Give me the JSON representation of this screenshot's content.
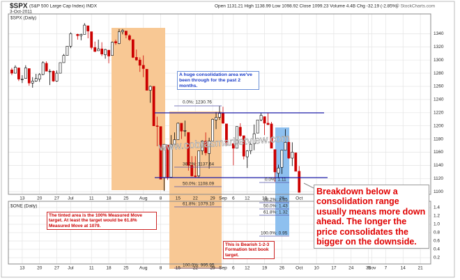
{
  "chart_data": [
    {
      "type": "candlestick",
      "symbol": "$SPX",
      "title": "(S&P 500 Large Cap Index) INDX",
      "date": "3-Oct-2011",
      "quote": "Open 1131.21 High 1138.99 Low 1098.92 Close 1099.23 Volume 4.4B Chg -32.19 (-2.85%)",
      "source": "© StockCharts.com",
      "subtitle": "$SPX (Daily)",
      "up_color": "#000000",
      "down_color": "#cc0000",
      "grid": true,
      "xlim": [
        "2011-06-07",
        "2011-11-24"
      ],
      "ylim": [
        1096,
        1370
      ],
      "yticks": [
        1100,
        1120,
        1140,
        1160,
        1180,
        1200,
        1220,
        1240,
        1260,
        1280,
        1300,
        1320,
        1340
      ],
      "xticks": [
        {
          "value": "2011-06-13",
          "label": "13"
        },
        {
          "value": "2011-06-20",
          "label": "20"
        },
        {
          "value": "2011-06-27",
          "label": "27"
        },
        {
          "value": "2011-07-01",
          "label": "Jul"
        },
        {
          "value": "2011-07-11",
          "label": "11"
        },
        {
          "value": "2011-07-18",
          "label": "18"
        },
        {
          "value": "2011-07-25",
          "label": "25"
        },
        {
          "value": "2011-08-01",
          "label": "Aug"
        },
        {
          "value": "2011-08-08",
          "label": "8"
        },
        {
          "value": "2011-08-15",
          "label": "15"
        },
        {
          "value": "2011-08-22",
          "label": "22"
        },
        {
          "value": "2011-08-29",
          "label": "29"
        },
        {
          "value": "2011-09-01",
          "label": "Sep"
        },
        {
          "value": "2011-09-06",
          "label": "6"
        },
        {
          "value": "2011-09-12",
          "label": "12"
        },
        {
          "value": "2011-09-19",
          "label": "19"
        },
        {
          "value": "2011-09-26",
          "label": "26"
        },
        {
          "value": "2011-10-03",
          "label": "Oct"
        },
        {
          "value": "2011-10-10",
          "label": "10"
        },
        {
          "value": "2011-10-17",
          "label": "17"
        },
        {
          "value": "2011-10-24",
          "label": "24"
        },
        {
          "value": "2011-10-31",
          "label": "31"
        },
        {
          "value": "2011-11-01",
          "label": "Nov"
        },
        {
          "value": "2011-11-07",
          "label": "7"
        },
        {
          "value": "2011-11-14",
          "label": "14"
        },
        {
          "value": "2011-11-21",
          "label": "21"
        }
      ],
      "x": [
        "2011-06-08",
        "2011-06-09",
        "2011-06-10",
        "2011-06-13",
        "2011-06-14",
        "2011-06-15",
        "2011-06-16",
        "2011-06-17",
        "2011-06-20",
        "2011-06-21",
        "2011-06-22",
        "2011-06-23",
        "2011-06-24",
        "2011-06-27",
        "2011-06-28",
        "2011-06-29",
        "2011-06-30",
        "2011-07-01",
        "2011-07-05",
        "2011-07-06",
        "2011-07-07",
        "2011-07-08",
        "2011-07-11",
        "2011-07-12",
        "2011-07-13",
        "2011-07-14",
        "2011-07-15",
        "2011-07-18",
        "2011-07-19",
        "2011-07-20",
        "2011-07-21",
        "2011-07-22",
        "2011-07-25",
        "2011-07-26",
        "2011-07-27",
        "2011-07-28",
        "2011-07-29",
        "2011-08-01",
        "2011-08-02",
        "2011-08-03",
        "2011-08-04",
        "2011-08-05",
        "2011-08-08",
        "2011-08-09",
        "2011-08-10",
        "2011-08-11",
        "2011-08-12",
        "2011-08-15",
        "2011-08-16",
        "2011-08-17",
        "2011-08-18",
        "2011-08-19",
        "2011-08-22",
        "2011-08-23",
        "2011-08-24",
        "2011-08-25",
        "2011-08-26",
        "2011-08-29",
        "2011-08-30",
        "2011-08-31",
        "2011-09-01",
        "2011-09-02",
        "2011-09-06",
        "2011-09-07",
        "2011-09-08",
        "2011-09-09",
        "2011-09-12",
        "2011-09-13",
        "2011-09-14",
        "2011-09-15",
        "2011-09-16",
        "2011-09-19",
        "2011-09-20",
        "2011-09-21",
        "2011-09-22",
        "2011-09-23",
        "2011-09-26",
        "2011-09-27",
        "2011-09-28",
        "2011-09-29",
        "2011-09-30",
        "2011-10-03"
      ],
      "open": [
        1285,
        1280,
        1288,
        1271,
        1272,
        1287,
        1265,
        1268,
        1271,
        1278,
        1295,
        1283,
        1283,
        1268,
        1280,
        1296,
        1307,
        1321,
        1339,
        1337,
        1339,
        1352,
        1343,
        1319,
        1314,
        1317,
        1308,
        1315,
        1307,
        1328,
        1325,
        1343,
        1344,
        1337,
        1331,
        1304,
        1300,
        1292,
        1286,
        1254,
        1260,
        1200,
        1199,
        1121,
        1171,
        1122,
        1172,
        1179,
        1204,
        1192,
        1190,
        1140,
        1124,
        1124,
        1162,
        1177,
        1158,
        1177,
        1209,
        1213,
        1219,
        1203,
        1173,
        1166,
        1198,
        1185,
        1153,
        1162,
        1173,
        1189,
        1209,
        1214,
        1204,
        1203,
        1164,
        1128,
        1137,
        1163,
        1175,
        1151,
        1159,
        1131
      ],
      "high": [
        1288,
        1292,
        1288,
        1277,
        1292,
        1287,
        1274,
        1279,
        1280,
        1298,
        1298,
        1286,
        1284,
        1284,
        1296,
        1309,
        1321,
        1342,
        1340,
        1340,
        1356,
        1352,
        1343,
        1328,
        1331,
        1327,
        1317,
        1315,
        1328,
        1331,
        1347,
        1347,
        1344,
        1339,
        1331,
        1316,
        1304,
        1307,
        1286,
        1261,
        1260,
        1214,
        1199,
        1172,
        1171,
        1186,
        1190,
        1205,
        1204,
        1208,
        1190,
        1154,
        1154,
        1162,
        1178,
        1190,
        1182,
        1211,
        1221,
        1230,
        1229,
        1203,
        1173,
        1198,
        1204,
        1185,
        1163,
        1177,
        1202,
        1209,
        1220,
        1214,
        1220,
        1206,
        1164,
        1141,
        1163,
        1195,
        1184,
        1175,
        1159,
        1139
      ],
      "low": [
        1277,
        1280,
        1268,
        1265,
        1272,
        1261,
        1258,
        1267,
        1267,
        1277,
        1283,
        1262,
        1267,
        1267,
        1280,
        1296,
        1307,
        1318,
        1331,
        1330,
        1339,
        1333,
        1316,
        1312,
        1314,
        1306,
        1302,
        1295,
        1307,
        1323,
        1324,
        1339,
        1333,
        1329,
        1303,
        1299,
        1282,
        1274,
        1254,
        1235,
        1200,
        1169,
        1119,
        1101,
        1118,
        1122,
        1170,
        1179,
        1180,
        1184,
        1132,
        1123,
        1121,
        1121,
        1156,
        1155,
        1135,
        1177,
        1195,
        1209,
        1203,
        1170,
        1140,
        1166,
        1183,
        1149,
        1136,
        1157,
        1163,
        1189,
        1207,
        1186,
        1201,
        1166,
        1115,
        1122,
        1127,
        1163,
        1150,
        1139,
        1131,
        1099
      ],
      "close": [
        1280,
        1289,
        1271,
        1271,
        1288,
        1265,
        1268,
        1272,
        1278,
        1296,
        1283,
        1283,
        1268,
        1280,
        1296,
        1307,
        1321,
        1340,
        1337,
        1339,
        1353,
        1344,
        1319,
        1313,
        1317,
        1309,
        1316,
        1306,
        1327,
        1326,
        1343,
        1345,
        1338,
        1331,
        1304,
        1300,
        1292,
        1287,
        1254,
        1260,
        1200,
        1199,
        1119,
        1172,
        1121,
        1172,
        1179,
        1204,
        1192,
        1193,
        1140,
        1124,
        1123,
        1162,
        1177,
        1159,
        1177,
        1210,
        1213,
        1219,
        1204,
        1174,
        1166,
        1199,
        1185,
        1154,
        1162,
        1172,
        1188,
        1209,
        1216,
        1204,
        1202,
        1166,
        1130,
        1136,
        1163,
        1175,
        1151,
        1160,
        1131,
        1099
      ],
      "annotations": [
        "A huge consolidation area we've been through for the past 2 months.",
        "Breakdown below a consolidation range usually means more down ahead. The longer the price consolidates the bigger on the downside.",
        "www.cobrasmarketview.com",
        "0.0%: 1230.76",
        "38.2%: 1137.64",
        "50.0%: 1108.09",
        "61.8%: 1079.10",
        "100.0%: 995.95",
        "0.0%: 1.11",
        "38.2%: 2.05",
        "50.0%: 1.43",
        "61.8%: 1.32",
        "100.0%: 0.95",
        "The tinted area is the 100% Measured Move target. At least the target would be 61.8% Measured Move at 1079.",
        "This is Bearish 1-2-3 Formation text book target."
      ]
    },
    {
      "type": "line",
      "subtitle": "$ONE (Daily)",
      "grid": true,
      "xlim": [
        "2011-06-07",
        "2011-11-24"
      ],
      "ylim": [
        0.05,
        1.55
      ],
      "yticks": [
        0.2,
        0.4,
        0.6,
        0.8,
        {
          "value": 1,
          "label": "1.0"
        },
        1.2,
        1.4
      ],
      "xticks": [
        {
          "value": "2011-06-13",
          "label": "13"
        },
        {
          "value": "2011-06-20",
          "label": "20"
        },
        {
          "value": "2011-06-27",
          "label": "27"
        },
        {
          "value": "2011-07-01",
          "label": "Jul"
        },
        {
          "value": "2011-07-11",
          "label": "11"
        },
        {
          "value": "2011-07-18",
          "label": "18"
        },
        {
          "value": "2011-07-25",
          "label": "25"
        },
        {
          "value": "2011-08-01",
          "label": "Aug"
        },
        {
          "value": "2011-08-08",
          "label": "8"
        },
        {
          "value": "2011-08-15",
          "label": "15"
        },
        {
          "value": "2011-08-22",
          "label": "22"
        },
        {
          "value": "2011-08-29",
          "label": "29"
        },
        {
          "value": "2011-09-01",
          "label": "Sep"
        },
        {
          "value": "2011-09-06",
          "label": "6"
        },
        {
          "value": "2011-09-12",
          "label": "12"
        },
        {
          "value": "2011-09-19",
          "label": "19"
        },
        {
          "value": "2011-09-26",
          "label": "26"
        },
        {
          "value": "2011-10-03",
          "label": "Oct"
        },
        {
          "value": "2011-10-10",
          "label": "10"
        },
        {
          "value": "2011-10-17",
          "label": "17"
        },
        {
          "value": "2011-10-24",
          "label": "24"
        },
        {
          "value": "2011-10-31",
          "label": "31"
        },
        {
          "value": "2011-11-01",
          "label": "Nov"
        },
        {
          "value": "2011-11-07",
          "label": "7"
        },
        {
          "value": "2011-11-14",
          "label": "14"
        },
        {
          "value": "2011-11-21",
          "label": "21"
        }
      ]
    }
  ]
}
